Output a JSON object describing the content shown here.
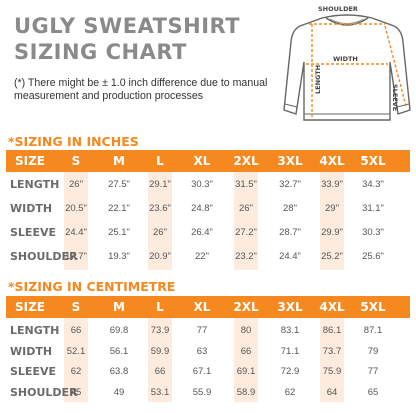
{
  "title_line1": "UGLY SWEATSHIRT",
  "title_line2": "SIZING CHART",
  "note": "(*) There might be ± 1.0 inch difference due to manual measurement and production processes",
  "diagram": {
    "shoulder_label": "SHOULDER",
    "width_label": "WIDTH",
    "length_label": "LENGTH",
    "sleeve_label": "SLEEVE"
  },
  "colors": {
    "accent": "#f5881f",
    "stripe": "#fdecde",
    "title": "#8a8a8a"
  },
  "inches": {
    "section_title": "*SIZING IN INCHES",
    "header": [
      "SIZE",
      "S",
      "M",
      "L",
      "XL",
      "2XL",
      "3XL",
      "4XL",
      "5XL"
    ],
    "rows": [
      {
        "label": "LENGTH",
        "values": [
          "26\"",
          "27.5\"",
          "29.1\"",
          "30.3\"",
          "31.5\"",
          "32.7\"",
          "33.9\"",
          "34.3\""
        ]
      },
      {
        "label": "WIDTH",
        "values": [
          "20.5\"",
          "22.1\"",
          "23.6\"",
          "24.8\"",
          "26\"",
          "28\"",
          "29\"",
          "31.1\""
        ]
      },
      {
        "label": "SLEEVE",
        "values": [
          "24.4\"",
          "25.1\"",
          "26\"",
          "26.4\"",
          "27.2\"",
          "28.7\"",
          "29.9\"",
          "30.3\""
        ]
      },
      {
        "label": "SHOULDER",
        "values": [
          "17.7\"",
          "19.3\"",
          "20.9\"",
          "22\"",
          "23.2\"",
          "24.4\"",
          "25.2\"",
          "25.6\""
        ]
      }
    ]
  },
  "centimetre": {
    "section_title": "*SIZING IN CENTIMETRE",
    "header": [
      "SIZE",
      "S",
      "M",
      "L",
      "XL",
      "2XL",
      "3XL",
      "4XL",
      "5XL"
    ],
    "rows": [
      {
        "label": "LENGTH",
        "values": [
          "66",
          "69.8",
          "73.9",
          "77",
          "80",
          "83.1",
          "86.1",
          "87.1"
        ]
      },
      {
        "label": "WIDTH",
        "values": [
          "52.1",
          "56.1",
          "59.9",
          "63",
          "66",
          "71.1",
          "73.7",
          "79"
        ]
      },
      {
        "label": "SLEEVE",
        "values": [
          "62",
          "63.8",
          "66",
          "67.1",
          "69.1",
          "72.9",
          "75.9",
          "77"
        ]
      },
      {
        "label": "SHOULDER",
        "values": [
          "45",
          "49",
          "53.1",
          "55.9",
          "58.9",
          "62",
          "64",
          "65"
        ]
      }
    ]
  }
}
